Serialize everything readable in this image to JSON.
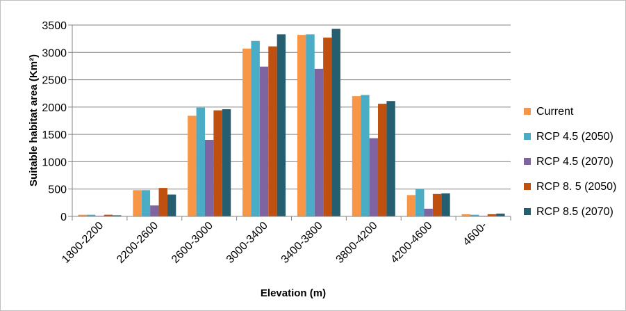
{
  "chart_data": {
    "type": "bar",
    "title": "",
    "xlabel": "Elevation (m)",
    "ylabel": "Suitable habitat area (Km²)",
    "ylim": [
      0,
      3500
    ],
    "yticks": [
      0,
      500,
      1000,
      1500,
      2000,
      2500,
      3000,
      3500
    ],
    "grid": "horizontal",
    "legend_position": "right",
    "categories": [
      "1800-2200",
      "2200-2600",
      "2600-3000",
      "3000-3400",
      "3400-3800",
      "3800-4200",
      "4200-4600",
      "4600-"
    ],
    "series": [
      {
        "name": "Current",
        "color": "#f79646",
        "values": [
          30,
          480,
          1840,
          3070,
          3320,
          2200,
          390,
          40
        ]
      },
      {
        "name": "RCP 4.5 (2050)",
        "color": "#4bacc6",
        "values": [
          30,
          480,
          1990,
          3210,
          3330,
          2220,
          500,
          30
        ]
      },
      {
        "name": "RCP 4.5 (2070)",
        "color": "#8064a2",
        "values": [
          10,
          200,
          1400,
          2740,
          2700,
          1430,
          140,
          10
        ]
      },
      {
        "name": "RCP 8. 5 (2050)",
        "color": "#c0500f",
        "values": [
          30,
          520,
          1940,
          3110,
          3270,
          2060,
          410,
          40
        ]
      },
      {
        "name": "RCP 8.5 (2070)",
        "color": "#245e6f",
        "values": [
          20,
          400,
          1960,
          3330,
          3430,
          2110,
          420,
          50
        ]
      }
    ]
  }
}
